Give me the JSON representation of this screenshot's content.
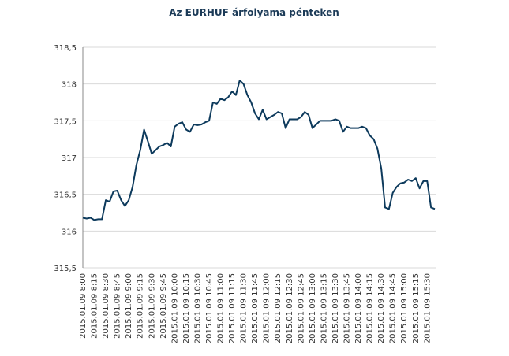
{
  "chart_data": {
    "type": "line",
    "title": "Az EURHUF árfolyama pénteken",
    "categories": [
      "2015.01.09 8:00",
      null,
      null,
      "2015.01.09 8:15",
      null,
      null,
      "2015.01.09 8:30",
      null,
      null,
      "2015.01.09 8:45",
      null,
      null,
      "2015.01.09 9:00",
      null,
      null,
      "2015.01.09 9:15",
      null,
      null,
      "2015.01.09 9:30",
      null,
      null,
      "2015.01.09 9:45",
      null,
      null,
      "2015.01.09 10:00",
      null,
      null,
      "2015.01.09 10:15",
      null,
      null,
      "2015.01.09 10:30",
      null,
      null,
      "2015.01.09 10:45",
      null,
      null,
      "2015.01.09 11:00",
      null,
      null,
      "2015.01.09 11:15",
      null,
      null,
      "2015.01.09 11:30",
      null,
      null,
      "2015.01.09 11:45",
      null,
      null,
      "2015.01.09 12:00",
      null,
      null,
      "2015.01.09 12:15",
      null,
      null,
      "2015.01.09 12:30",
      null,
      null,
      "2015.01.09 12:45",
      null,
      null,
      "2015.01.09 13:00",
      null,
      null,
      "2015.01.09 13:15",
      null,
      null,
      "2015.01.09 13:30",
      null,
      null,
      "2015.01.09 13:45",
      null,
      null,
      "2015.01.09 14:00",
      null,
      null,
      "2015.01.09 14:15",
      null,
      null,
      "2015.01.09 14:30",
      null,
      null,
      "2015.01.09 14:45",
      null,
      null,
      "2015.01.09 15:00",
      null,
      null,
      "2015.01.09 15:15",
      null,
      null,
      "2015.01.09 15:30",
      null,
      null
    ],
    "series": [
      {
        "name": "EURHUF",
        "color": "#0d3a5c",
        "values": [
          316.18,
          316.17,
          316.18,
          316.15,
          316.16,
          316.16,
          316.42,
          316.4,
          316.54,
          316.55,
          316.42,
          316.34,
          316.42,
          316.6,
          316.9,
          317.1,
          317.38,
          317.22,
          317.05,
          317.1,
          317.15,
          317.17,
          317.2,
          317.15,
          317.42,
          317.46,
          317.48,
          317.38,
          317.35,
          317.45,
          317.44,
          317.45,
          317.48,
          317.5,
          317.75,
          317.73,
          317.8,
          317.78,
          317.82,
          317.9,
          317.85,
          318.05,
          318.0,
          317.85,
          317.75,
          317.6,
          317.52,
          317.65,
          317.52,
          317.55,
          317.58,
          317.62,
          317.6,
          317.4,
          317.52,
          317.52,
          317.52,
          317.55,
          317.62,
          317.58,
          317.4,
          317.45,
          317.5,
          317.5,
          317.5,
          317.5,
          317.52,
          317.5,
          317.35,
          317.42,
          317.4,
          317.4,
          317.4,
          317.42,
          317.4,
          317.3,
          317.25,
          317.12,
          316.85,
          316.32,
          316.3,
          316.52,
          316.6,
          316.65,
          316.66,
          316.7,
          316.68,
          316.72,
          316.58,
          316.68,
          316.68,
          316.32,
          316.3
        ]
      }
    ],
    "ylim": [
      315.5,
      318.5
    ],
    "yticks": [
      {
        "value": 315.5,
        "label": "315,5"
      },
      316,
      {
        "value": 316.5,
        "label": "316,5"
      },
      317,
      {
        "value": 317.5,
        "label": "317,5"
      },
      318,
      {
        "value": 318.5,
        "label": "318,5"
      }
    ],
    "grid": true
  }
}
